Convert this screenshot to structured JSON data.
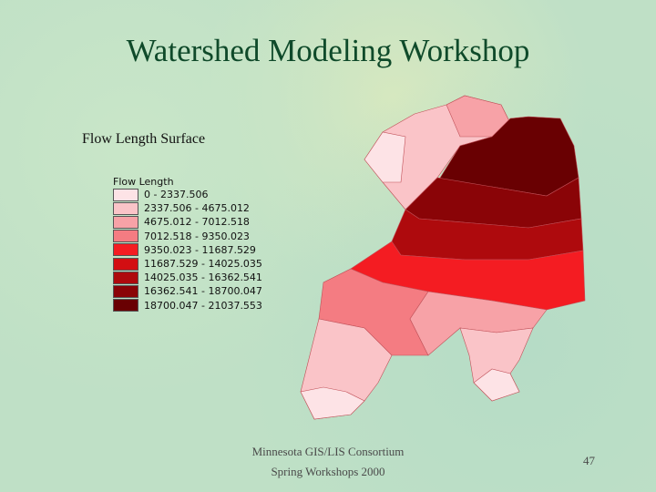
{
  "header": {
    "title": "Watershed Modeling Workshop",
    "subtitle": "Flow Length Surface"
  },
  "legend": {
    "title": "Flow Length",
    "items": [
      {
        "label": "0 - 2337.506",
        "color": "#fde3e6"
      },
      {
        "label": "2337.506 - 4675.012",
        "color": "#fac4c8"
      },
      {
        "label": "4675.012 - 7012.518",
        "color": "#f7a2a7"
      },
      {
        "label": "7012.518 - 9350.023",
        "color": "#f47c82"
      },
      {
        "label": "9350.023 - 11687.529",
        "color": "#f41c22"
      },
      {
        "label": "11687.529 - 14025.035",
        "color": "#d30e12"
      },
      {
        "label": "14025.035 - 16362.541",
        "color": "#ae0a0d"
      },
      {
        "label": "16362.541 - 18700.047",
        "color": "#8a0407"
      },
      {
        "label": "18700.047 - 21037.553",
        "color": "#690002"
      }
    ]
  },
  "footer": {
    "lines": [
      "Minnesota GIS/LIS Consortium",
      "Spring Workshops 2000"
    ],
    "page_number": "47"
  }
}
